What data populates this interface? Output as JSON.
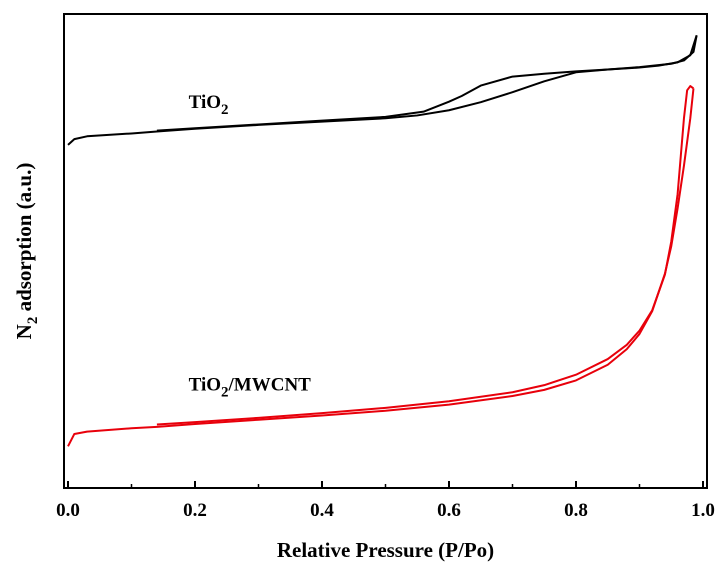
{
  "chart_data": {
    "type": "line",
    "title": "",
    "xlabel": "Relative Pressure (P/Po)",
    "ylabel": {
      "prefix": "N",
      "sub": "2",
      "suffix": " adsorption (a.u.)"
    },
    "xlim": [
      0.0,
      1.0
    ],
    "ylim": [
      0,
      100
    ],
    "x_ticks": [
      "0.0",
      "0.2",
      "0.4",
      "0.6",
      "0.8",
      "1.0"
    ],
    "y_ticks_shown": false,
    "grid": false,
    "legend": "none",
    "series": [
      {
        "label": {
          "prefix": "TiO",
          "sub": "2",
          "suffix": ""
        },
        "color": "#000000",
        "label_pos": [
          0.19,
          80.2
        ],
        "adsorption": {
          "x": [
            0.0,
            0.01,
            0.03,
            0.1,
            0.14,
            0.2,
            0.3,
            0.4,
            0.5,
            0.55,
            0.6,
            0.65,
            0.7,
            0.75,
            0.8,
            0.85,
            0.9,
            0.95,
            0.97,
            0.985,
            0.99
          ],
          "y": [
            72.4,
            73.6,
            74.2,
            74.8,
            75.2,
            75.8,
            76.6,
            77.3,
            78.0,
            78.6,
            79.7,
            81.4,
            83.5,
            85.8,
            87.7,
            88.3,
            88.8,
            89.5,
            90.2,
            92.0,
            95.5
          ]
        },
        "desorption": {
          "x": [
            0.99,
            0.98,
            0.96,
            0.93,
            0.9,
            0.85,
            0.8,
            0.75,
            0.7,
            0.65,
            0.62,
            0.6,
            0.56,
            0.5,
            0.4,
            0.3,
            0.2,
            0.14
          ],
          "y": [
            95.5,
            91.3,
            89.8,
            89.1,
            88.7,
            88.3,
            87.9,
            87.4,
            86.8,
            84.9,
            82.7,
            81.5,
            79.4,
            78.3,
            77.5,
            76.7,
            75.9,
            75.4
          ]
        }
      },
      {
        "label": {
          "prefix": "TiO",
          "sub": "2",
          "suffix": "/MWCNT"
        },
        "color": "#e8000b",
        "label_pos": [
          0.19,
          20.6
        ],
        "adsorption": {
          "x": [
            0.0,
            0.01,
            0.03,
            0.1,
            0.14,
            0.2,
            0.3,
            0.4,
            0.5,
            0.6,
            0.7,
            0.75,
            0.8,
            0.85,
            0.88,
            0.9,
            0.92,
            0.94,
            0.95,
            0.96,
            0.97,
            0.98,
            0.985
          ],
          "y": [
            8.8,
            11.4,
            11.9,
            12.6,
            12.9,
            13.5,
            14.4,
            15.3,
            16.3,
            17.6,
            19.4,
            20.7,
            22.7,
            26.0,
            29.3,
            32.5,
            37.3,
            45.2,
            51.0,
            59.0,
            68.0,
            78.0,
            84.3
          ]
        },
        "desorption": {
          "x": [
            0.985,
            0.98,
            0.975,
            0.97,
            0.965,
            0.96,
            0.95,
            0.94,
            0.92,
            0.9,
            0.88,
            0.85,
            0.8,
            0.75,
            0.7,
            0.6,
            0.5,
            0.4,
            0.3,
            0.2,
            0.14
          ],
          "y": [
            84.3,
            84.8,
            83.9,
            78.0,
            70.0,
            62.0,
            52.0,
            45.0,
            37.5,
            33.2,
            30.2,
            27.2,
            23.9,
            21.7,
            20.2,
            18.3,
            16.9,
            15.8,
            14.8,
            13.9,
            13.4
          ]
        }
      }
    ]
  }
}
